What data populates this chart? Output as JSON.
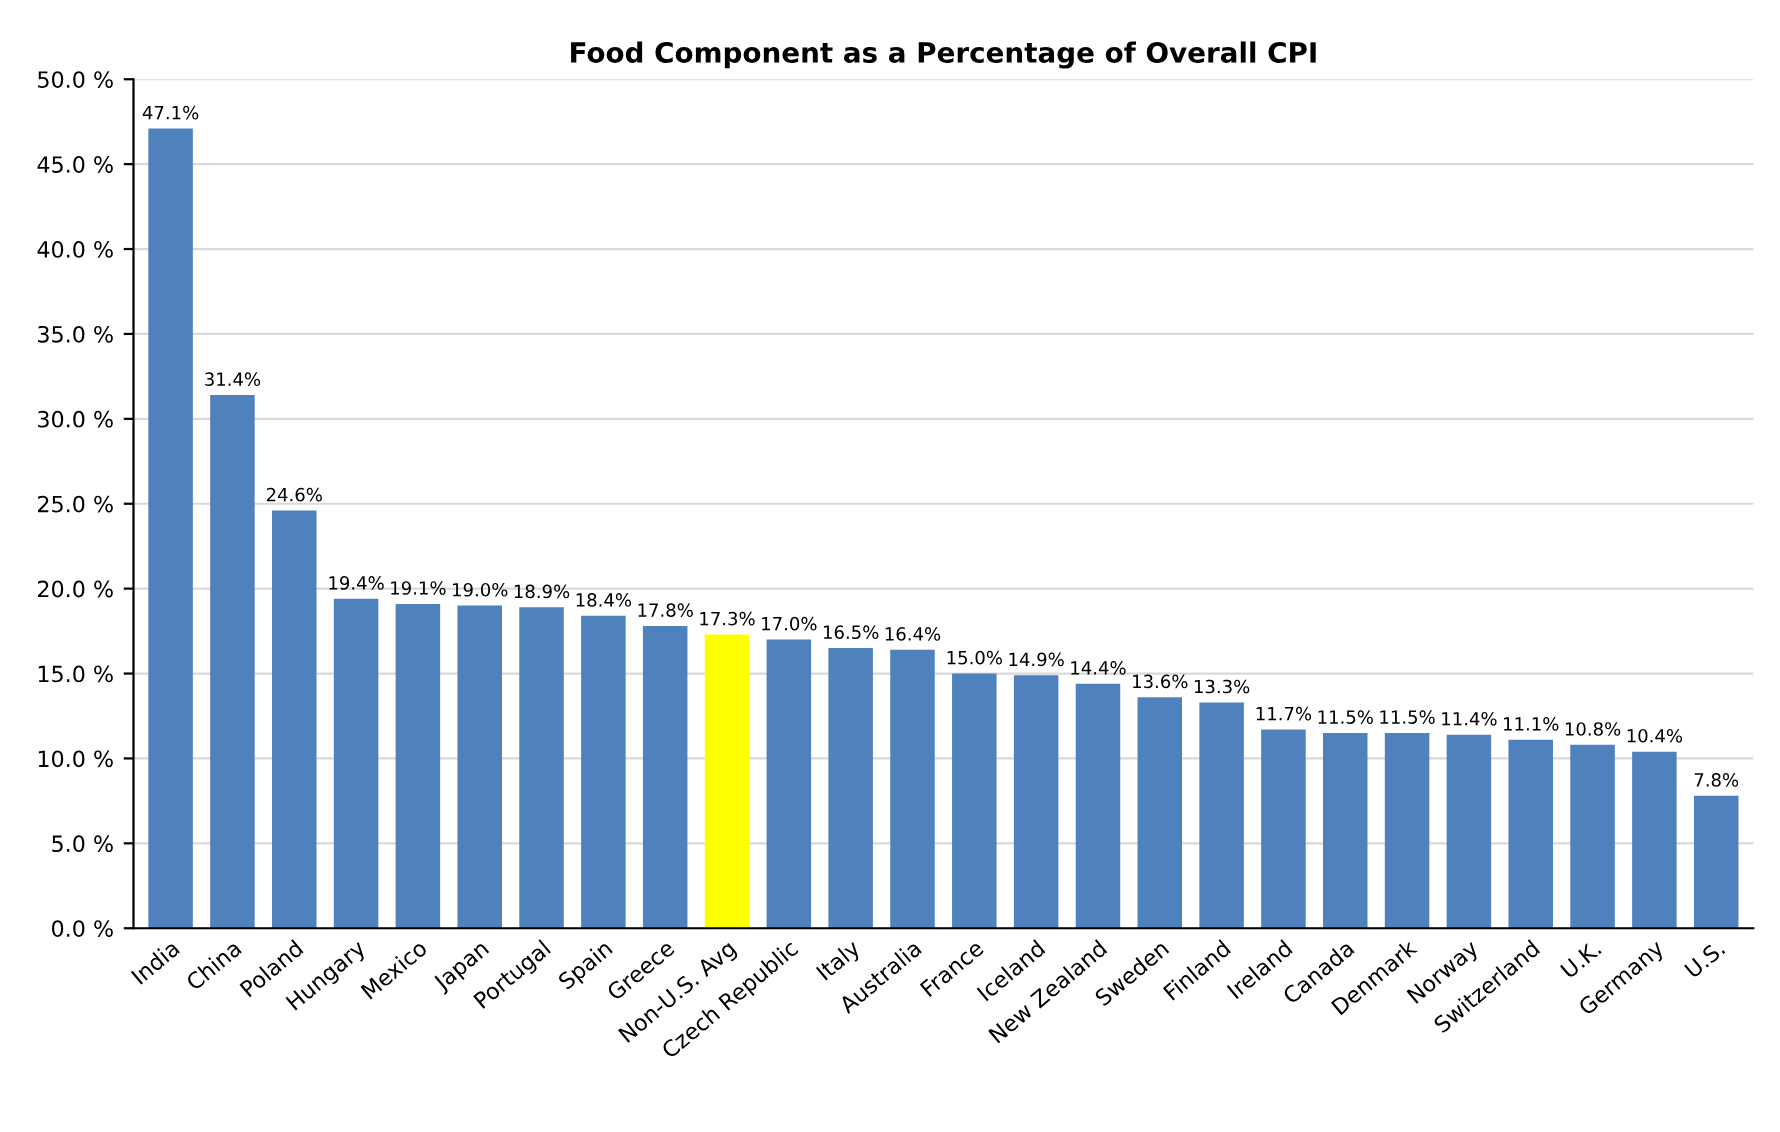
{
  "chart_data": {
    "type": "bar",
    "title": "Food Component as a Percentage of Overall CPI",
    "categories": [
      "India",
      "China",
      "Poland",
      "Hungary",
      "Mexico",
      "Japan",
      "Portugal",
      "Spain",
      "Greece",
      "Non-U.S. Avg",
      "Czech Republic",
      "Italy",
      "Australia",
      "France",
      "Iceland",
      "New Zealand",
      "Sweden",
      "Finland",
      "Ireland",
      "Canada",
      "Denmark",
      "Norway",
      "Switzerland",
      "U.K.",
      "Germany",
      "U.S."
    ],
    "values": [
      47.1,
      31.4,
      24.6,
      19.4,
      19.1,
      19.0,
      18.9,
      18.4,
      17.8,
      17.3,
      17.0,
      16.5,
      16.4,
      15.0,
      14.9,
      14.4,
      13.6,
      13.3,
      11.7,
      11.5,
      11.5,
      11.4,
      11.1,
      10.8,
      10.4,
      7.8
    ],
    "colors": [
      "#4f81bd",
      "#4f81bd",
      "#4f81bd",
      "#4f81bd",
      "#4f81bd",
      "#4f81bd",
      "#4f81bd",
      "#4f81bd",
      "#4f81bd",
      "#ffff00",
      "#4f81bd",
      "#4f81bd",
      "#4f81bd",
      "#4f81bd",
      "#4f81bd",
      "#4f81bd",
      "#4f81bd",
      "#4f81bd",
      "#4f81bd",
      "#4f81bd",
      "#4f81bd",
      "#4f81bd",
      "#4f81bd",
      "#4f81bd",
      "#4f81bd",
      "#4f81bd"
    ],
    "value_labels": [
      "47.1%",
      "31.4%",
      "24.6%",
      "19.4%",
      "19.1%",
      "19.0%",
      "18.9%",
      "18.4%",
      "17.8%",
      "17.3%",
      "17.0%",
      "16.5%",
      "16.4%",
      "15.0%",
      "14.9%",
      "14.4%",
      "13.6%",
      "13.3%",
      "11.7%",
      "11.5%",
      "11.5%",
      "11.4%",
      "11.1%",
      "10.8%",
      "10.4%",
      "7.8%"
    ],
    "ylim": [
      0,
      50
    ],
    "yticks": [
      {
        "value": 0,
        "label": "0.0 %"
      },
      {
        "value": 5,
        "label": "5.0 %"
      },
      {
        "value": 10,
        "label": "10.0 %"
      },
      {
        "value": 15,
        "label": "15.0 %"
      },
      {
        "value": 20,
        "label": "20.0 %"
      },
      {
        "value": 25,
        "label": "25.0 %"
      },
      {
        "value": 30,
        "label": "30.0 %"
      },
      {
        "value": 35,
        "label": "35.0 %"
      },
      {
        "value": 40,
        "label": "40.0 %"
      },
      {
        "value": 45,
        "label": "45.0 %"
      },
      {
        "value": 50,
        "label": "50.0 %"
      }
    ],
    "grid": "y",
    "legend": false
  }
}
